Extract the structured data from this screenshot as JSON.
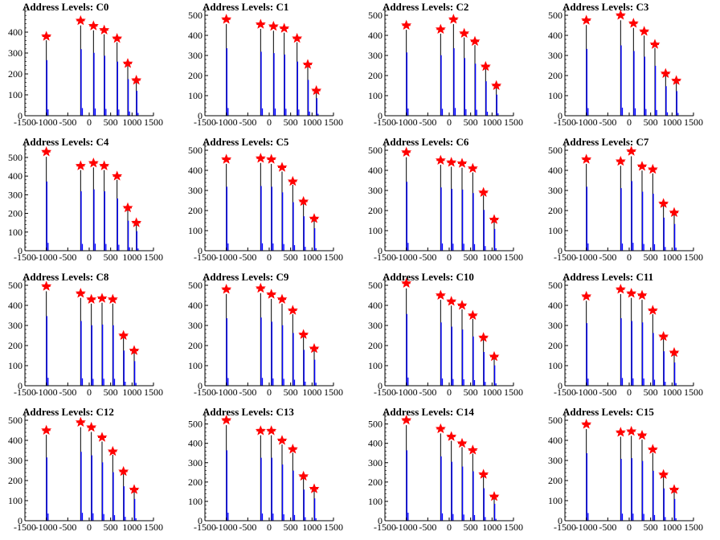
{
  "chart_data": [
    {
      "type": "bar",
      "title": "Address Levels: C0",
      "xlim": [
        -1500,
        1500
      ],
      "ylim": [
        0,
        500
      ],
      "xticks": [
        "-1500",
        "-1000",
        "-500",
        "0",
        "500",
        "1000",
        "1500"
      ],
      "yticks": [
        "0",
        "100",
        "200",
        "300",
        "400"
      ],
      "peaks": [
        {
          "x": -1000,
          "y": 380
        },
        {
          "x": -200,
          "y": 455
        },
        {
          "x": 100,
          "y": 430
        },
        {
          "x": 350,
          "y": 410
        },
        {
          "x": 650,
          "y": 370
        },
        {
          "x": 900,
          "y": 250
        },
        {
          "x": 1100,
          "y": 170
        }
      ]
    },
    {
      "type": "bar",
      "title": "Address Levels: C1",
      "xlim": [
        -1500,
        1500
      ],
      "ylim": [
        0,
        520
      ],
      "xticks": [
        "-1500",
        "-1000",
        "-500",
        "0",
        "500",
        "1000",
        "1500"
      ],
      "yticks": [
        "0",
        "100",
        "200",
        "300",
        "400",
        "500"
      ],
      "peaks": [
        {
          "x": -1000,
          "y": 480
        },
        {
          "x": -200,
          "y": 455
        },
        {
          "x": 100,
          "y": 445
        },
        {
          "x": 350,
          "y": 435
        },
        {
          "x": 650,
          "y": 385
        },
        {
          "x": 900,
          "y": 255
        },
        {
          "x": 1100,
          "y": 125
        }
      ]
    },
    {
      "type": "bar",
      "title": "Address Levels: C2",
      "xlim": [
        -1500,
        1500
      ],
      "ylim": [
        0,
        520
      ],
      "xticks": [
        "-1500",
        "-1000",
        "-500",
        "0",
        "500",
        "1000",
        "1500"
      ],
      "yticks": [
        "0",
        "100",
        "200",
        "300",
        "400",
        "500"
      ],
      "peaks": [
        {
          "x": -1000,
          "y": 450
        },
        {
          "x": -200,
          "y": 430
        },
        {
          "x": 100,
          "y": 480
        },
        {
          "x": 350,
          "y": 410
        },
        {
          "x": 600,
          "y": 370
        },
        {
          "x": 850,
          "y": 245
        },
        {
          "x": 1100,
          "y": 150
        }
      ]
    },
    {
      "type": "bar",
      "title": "Address Levels: C3",
      "xlim": [
        -1500,
        1500
      ],
      "ylim": [
        0,
        520
      ],
      "xticks": [
        "-1500",
        "-1000",
        "-500",
        "0",
        "500",
        "1000",
        "1500"
      ],
      "yticks": [
        "0",
        "100",
        "200",
        "300",
        "400",
        "500"
      ],
      "peaks": [
        {
          "x": -1000,
          "y": 475
        },
        {
          "x": -200,
          "y": 500
        },
        {
          "x": 100,
          "y": 460
        },
        {
          "x": 350,
          "y": 420
        },
        {
          "x": 600,
          "y": 355
        },
        {
          "x": 850,
          "y": 210
        },
        {
          "x": 1100,
          "y": 175
        }
      ]
    },
    {
      "type": "bar",
      "title": "Address Levels: C4",
      "xlim": [
        -1500,
        1500
      ],
      "ylim": [
        0,
        560
      ],
      "xticks": [
        "-1500",
        "-1000",
        "-500",
        "0",
        "500",
        "1000",
        "1500"
      ],
      "yticks": [
        "0",
        "100",
        "200",
        "300",
        "400",
        "500"
      ],
      "peaks": [
        {
          "x": -1000,
          "y": 530
        },
        {
          "x": -200,
          "y": 455
        },
        {
          "x": 100,
          "y": 470
        },
        {
          "x": 350,
          "y": 455
        },
        {
          "x": 650,
          "y": 400
        },
        {
          "x": 900,
          "y": 230
        },
        {
          "x": 1100,
          "y": 150
        }
      ]
    },
    {
      "type": "bar",
      "title": "Address Levels: C5",
      "xlim": [
        -1500,
        1500
      ],
      "ylim": [
        0,
        520
      ],
      "xticks": [
        "-1500",
        "-1000",
        "-500",
        "0",
        "500",
        "1000",
        "1500"
      ],
      "yticks": [
        "0",
        "100",
        "200",
        "300",
        "400",
        "500"
      ],
      "peaks": [
        {
          "x": -1000,
          "y": 455
        },
        {
          "x": -200,
          "y": 460
        },
        {
          "x": 50,
          "y": 455
        },
        {
          "x": 300,
          "y": 415
        },
        {
          "x": 550,
          "y": 345
        },
        {
          "x": 800,
          "y": 245
        },
        {
          "x": 1050,
          "y": 160
        }
      ]
    },
    {
      "type": "bar",
      "title": "Address Levels: C6",
      "xlim": [
        -1500,
        1500
      ],
      "ylim": [
        0,
        520
      ],
      "xticks": [
        "-1500",
        "-1000",
        "-500",
        "0",
        "500",
        "1000",
        "1500"
      ],
      "yticks": [
        "0",
        "100",
        "200",
        "300",
        "400",
        "500"
      ],
      "peaks": [
        {
          "x": -1000,
          "y": 490
        },
        {
          "x": -200,
          "y": 450
        },
        {
          "x": 50,
          "y": 440
        },
        {
          "x": 300,
          "y": 435
        },
        {
          "x": 550,
          "y": 410
        },
        {
          "x": 800,
          "y": 290
        },
        {
          "x": 1050,
          "y": 155
        }
      ]
    },
    {
      "type": "bar",
      "title": "Address Levels: C7",
      "xlim": [
        -1500,
        1500
      ],
      "ylim": [
        0,
        520
      ],
      "xticks": [
        "-1500",
        "-1000",
        "-500",
        "0",
        "500",
        "1000",
        "1500"
      ],
      "yticks": [
        "0",
        "100",
        "200",
        "300",
        "400",
        "500"
      ],
      "peaks": [
        {
          "x": -1000,
          "y": 455
        },
        {
          "x": -200,
          "y": 445
        },
        {
          "x": 50,
          "y": 495
        },
        {
          "x": 300,
          "y": 420
        },
        {
          "x": 550,
          "y": 405
        },
        {
          "x": 800,
          "y": 235
        },
        {
          "x": 1050,
          "y": 190
        }
      ]
    },
    {
      "type": "bar",
      "title": "Address Levels: C8",
      "xlim": [
        -1500,
        1500
      ],
      "ylim": [
        0,
        520
      ],
      "xticks": [
        "-1500",
        "-1000",
        "-500",
        "0",
        "500",
        "1000",
        "1500"
      ],
      "yticks": [
        "0",
        "100",
        "200",
        "300",
        "400",
        "500"
      ],
      "peaks": [
        {
          "x": -1000,
          "y": 495
        },
        {
          "x": -200,
          "y": 460
        },
        {
          "x": 50,
          "y": 430
        },
        {
          "x": 300,
          "y": 435
        },
        {
          "x": 550,
          "y": 430
        },
        {
          "x": 800,
          "y": 250
        },
        {
          "x": 1050,
          "y": 175
        }
      ]
    },
    {
      "type": "bar",
      "title": "Address Levels: C9",
      "xlim": [
        -1500,
        1500
      ],
      "ylim": [
        0,
        520
      ],
      "xticks": [
        "-1500",
        "-1000",
        "-500",
        "0",
        "500",
        "1000",
        "1500"
      ],
      "yticks": [
        "0",
        "100",
        "200",
        "300",
        "400",
        "500"
      ],
      "peaks": [
        {
          "x": -1000,
          "y": 480
        },
        {
          "x": -200,
          "y": 485
        },
        {
          "x": 50,
          "y": 455
        },
        {
          "x": 300,
          "y": 430
        },
        {
          "x": 550,
          "y": 375
        },
        {
          "x": 800,
          "y": 255
        },
        {
          "x": 1050,
          "y": 185
        }
      ]
    },
    {
      "type": "bar",
      "title": "Address Levels: C10",
      "xlim": [
        -1500,
        1500
      ],
      "ylim": [
        0,
        520
      ],
      "xticks": [
        "-1500",
        "-1000",
        "-500",
        "0",
        "500",
        "1000",
        "1500"
      ],
      "yticks": [
        "0",
        "100",
        "200",
        "300",
        "400",
        "500"
      ],
      "peaks": [
        {
          "x": -1000,
          "y": 510
        },
        {
          "x": -200,
          "y": 450
        },
        {
          "x": 50,
          "y": 420
        },
        {
          "x": 300,
          "y": 400
        },
        {
          "x": 550,
          "y": 350
        },
        {
          "x": 800,
          "y": 240
        },
        {
          "x": 1050,
          "y": 145
        }
      ]
    },
    {
      "type": "bar",
      "title": "Address Levels: C11",
      "xlim": [
        -1500,
        1500
      ],
      "ylim": [
        0,
        520
      ],
      "xticks": [
        "-1500",
        "-1000",
        "-500",
        "0",
        "500",
        "1000",
        "1500"
      ],
      "yticks": [
        "0",
        "100",
        "200",
        "300",
        "400",
        "500"
      ],
      "peaks": [
        {
          "x": -1000,
          "y": 445
        },
        {
          "x": -200,
          "y": 480
        },
        {
          "x": 50,
          "y": 460
        },
        {
          "x": 300,
          "y": 450
        },
        {
          "x": 550,
          "y": 375
        },
        {
          "x": 800,
          "y": 245
        },
        {
          "x": 1050,
          "y": 165
        }
      ]
    },
    {
      "type": "bar",
      "title": "Address Levels: C12",
      "xlim": [
        -1500,
        1500
      ],
      "ylim": [
        0,
        520
      ],
      "xticks": [
        "-1500",
        "-1000",
        "-500",
        "0",
        "500",
        "1000",
        "1500"
      ],
      "yticks": [
        "0",
        "100",
        "200",
        "300",
        "400",
        "500"
      ],
      "peaks": [
        {
          "x": -1000,
          "y": 450
        },
        {
          "x": -200,
          "y": 490
        },
        {
          "x": 50,
          "y": 465
        },
        {
          "x": 300,
          "y": 415
        },
        {
          "x": 550,
          "y": 345
        },
        {
          "x": 800,
          "y": 245
        },
        {
          "x": 1050,
          "y": 155
        }
      ]
    },
    {
      "type": "bar",
      "title": "Address Levels: C13",
      "xlim": [
        -1500,
        1500
      ],
      "ylim": [
        0,
        540
      ],
      "xticks": [
        "-1500",
        "-1000",
        "-500",
        "0",
        "500",
        "1000",
        "1500"
      ],
      "yticks": [
        "0",
        "100",
        "200",
        "300",
        "400",
        "500"
      ],
      "peaks": [
        {
          "x": -1000,
          "y": 520
        },
        {
          "x": -200,
          "y": 465
        },
        {
          "x": 50,
          "y": 465
        },
        {
          "x": 300,
          "y": 415
        },
        {
          "x": 550,
          "y": 370
        },
        {
          "x": 800,
          "y": 230
        },
        {
          "x": 1050,
          "y": 165
        }
      ]
    },
    {
      "type": "bar",
      "title": "Address Levels: C14",
      "xlim": [
        -1500,
        1500
      ],
      "ylim": [
        0,
        540
      ],
      "xticks": [
        "-1500",
        "-1000",
        "-500",
        "0",
        "500",
        "1000",
        "1500"
      ],
      "yticks": [
        "0",
        "100",
        "200",
        "300",
        "400",
        "500"
      ],
      "peaks": [
        {
          "x": -1000,
          "y": 520
        },
        {
          "x": -200,
          "y": 475
        },
        {
          "x": 50,
          "y": 435
        },
        {
          "x": 300,
          "y": 400
        },
        {
          "x": 550,
          "y": 365
        },
        {
          "x": 800,
          "y": 240
        },
        {
          "x": 1050,
          "y": 125
        }
      ]
    },
    {
      "type": "bar",
      "title": "Address Levels: C15",
      "xlim": [
        -1500,
        1500
      ],
      "ylim": [
        0,
        520
      ],
      "xticks": [
        "-1500",
        "-1000",
        "-500",
        "0",
        "500",
        "1000",
        "1500"
      ],
      "yticks": [
        "0",
        "100",
        "200",
        "300",
        "400",
        "500"
      ],
      "peaks": [
        {
          "x": -1000,
          "y": 480
        },
        {
          "x": -200,
          "y": 440
        },
        {
          "x": 50,
          "y": 445
        },
        {
          "x": 300,
          "y": 425
        },
        {
          "x": 550,
          "y": 355
        },
        {
          "x": 800,
          "y": 230
        },
        {
          "x": 1050,
          "y": 155
        }
      ]
    }
  ],
  "colors": {
    "bar": "#0000ff",
    "marker": "#ff0000",
    "axis": "#000000"
  }
}
